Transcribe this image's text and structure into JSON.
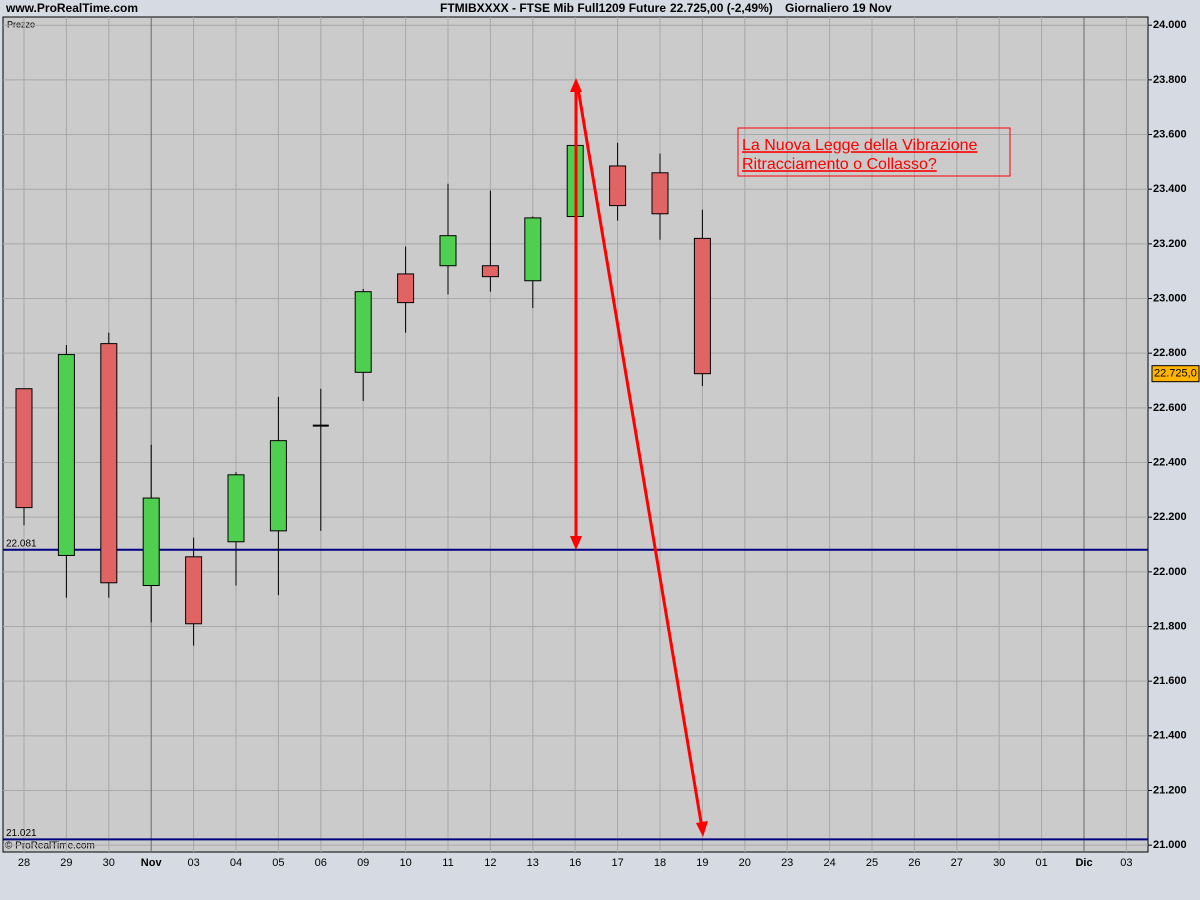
{
  "chart_data": {
    "type": "candlestick",
    "site": "www.ProRealTime.com",
    "title": "FTMIBXXXX - FTSE Mib Full1209 Future",
    "subtitle": "22.725,00 (-2,49%)",
    "period": "Giornaliero  19 Nov",
    "panel_label": "Prezzo",
    "copyright": "© ProRealTime.com",
    "annotation": [
      "La Nuova Legge della Vibrazione",
      "Ritracciamento o Collasso?"
    ],
    "categories": [
      "28",
      "29",
      "30",
      "Nov",
      "03",
      "04",
      "05",
      "06",
      "09",
      "10",
      "11",
      "12",
      "13",
      "16",
      "17",
      "18",
      "19",
      "20",
      "23",
      "24",
      "25",
      "26",
      "27",
      "30",
      "01",
      "Dic",
      "03"
    ],
    "month_marks": [
      "Nov",
      "Dic"
    ],
    "series": [
      {
        "up_color": "#4fcf4f",
        "down_color": "#e06464",
        "open": [
          22670,
          22060,
          22835,
          21950,
          22055,
          22110,
          22150,
          22535,
          22730,
          23090,
          23120,
          23120,
          23065,
          23300,
          23485,
          23460,
          23220,
          null,
          null,
          null,
          null,
          null,
          null,
          null,
          null,
          null,
          null
        ],
        "high": [
          22670,
          22830,
          22875,
          22465,
          22125,
          22365,
          22640,
          22670,
          23035,
          23190,
          23420,
          23395,
          23300,
          23560,
          23570,
          23530,
          23325,
          null,
          null,
          null,
          null,
          null,
          null,
          null,
          null,
          null,
          null
        ],
        "low": [
          22170,
          21905,
          21905,
          21815,
          21730,
          21950,
          21915,
          22150,
          22625,
          22875,
          23015,
          23025,
          22965,
          23300,
          23285,
          23215,
          22680,
          null,
          null,
          null,
          null,
          null,
          null,
          null,
          null,
          null,
          null
        ],
        "close": [
          22235,
          22795,
          21960,
          22270,
          21810,
          22355,
          22480,
          22535,
          23025,
          22985,
          23230,
          23080,
          23295,
          23560,
          23340,
          23310,
          22725,
          null,
          null,
          null,
          null,
          null,
          null,
          null,
          null,
          null,
          null
        ]
      }
    ],
    "levels": [
      {
        "value": 22081,
        "label": "22.081"
      },
      {
        "value": 21021,
        "label": "21.021"
      }
    ],
    "level_color": "#000080",
    "last_price": {
      "value": 22725,
      "label": "22.725,0"
    },
    "ylim": [
      20975,
      24030
    ],
    "yticks": [
      {
        "value": 21000,
        "label": "21.000"
      },
      {
        "value": 21200,
        "label": "21.200"
      },
      {
        "value": 21400,
        "label": "21.400"
      },
      {
        "value": 21600,
        "label": "21.600"
      },
      {
        "value": 21800,
        "label": "21.800"
      },
      {
        "value": 22000,
        "label": "22.000"
      },
      {
        "value": 22200,
        "label": "22.200"
      },
      {
        "value": 22400,
        "label": "22.400"
      },
      {
        "value": 22600,
        "label": "22.600"
      },
      {
        "value": 22800,
        "label": "22.800"
      },
      {
        "value": 23000,
        "label": "23.000"
      },
      {
        "value": 23200,
        "label": "23.200"
      },
      {
        "value": 23400,
        "label": "23.400"
      },
      {
        "value": 23600,
        "label": "23.600"
      },
      {
        "value": 23800,
        "label": "23.800"
      },
      {
        "value": 24000,
        "label": "24.000"
      }
    ],
    "grid": true
  }
}
